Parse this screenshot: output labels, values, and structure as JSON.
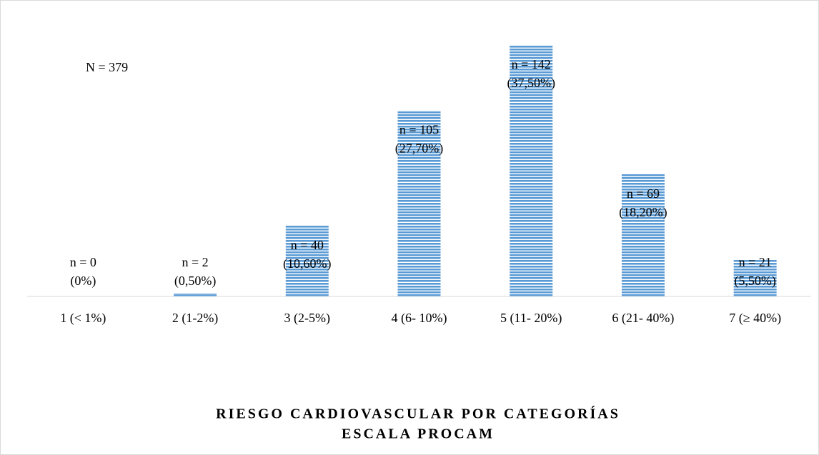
{
  "chart_data": {
    "type": "bar",
    "title": [
      "RIESGO CARDIOVASCULAR POR CATEGORÍAS",
      "ESCALA PROCAM"
    ],
    "annotation": "N = 379",
    "categories": [
      "1 (< 1%)",
      "2 (1-2%)",
      "3 (2-5%)",
      "4 (6- 10%)",
      "5 (11- 20%)",
      "6 (21- 40%)",
      "7 (≥ 40%)"
    ],
    "values": [
      0,
      2,
      40,
      105,
      142,
      69,
      21
    ],
    "value_labels": [
      [
        "n = 0",
        "(0%)"
      ],
      [
        "n = 2",
        "(0,50%)"
      ],
      [
        "n = 40",
        "(10,60%)"
      ],
      [
        "n = 105",
        "(27,70%)"
      ],
      [
        "n = 142",
        "(37,50%)"
      ],
      [
        "n = 69",
        "(18,20%)"
      ],
      [
        "n = 21",
        "(5,50%)"
      ]
    ],
    "color": "#5b9bd5",
    "ylim": [
      0,
      150
    ]
  }
}
